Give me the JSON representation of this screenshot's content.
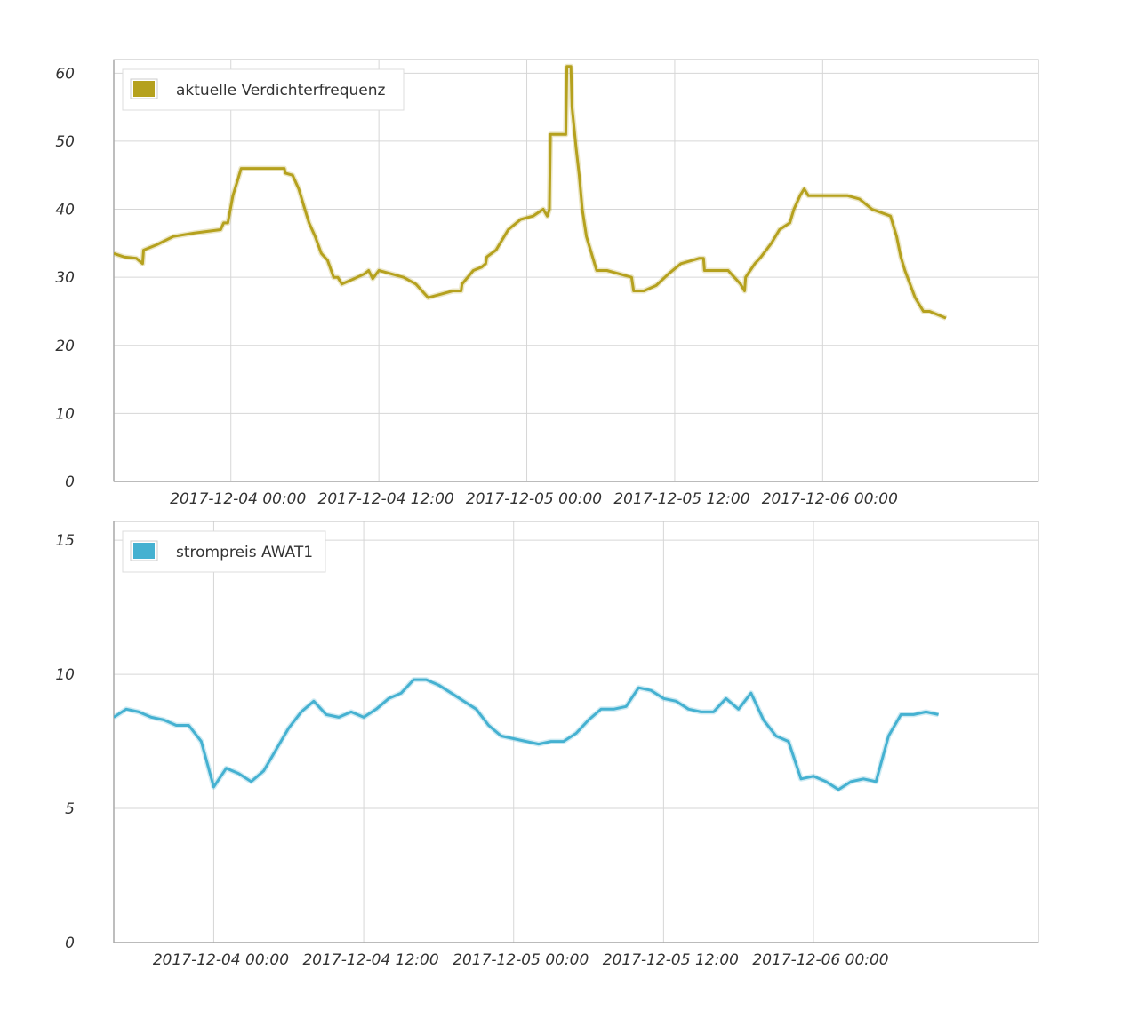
{
  "chart_data": [
    {
      "type": "line",
      "title": "",
      "xlabel": "",
      "ylabel": "",
      "ylim": [
        0,
        62
      ],
      "yticks": [
        0,
        10,
        20,
        30,
        40,
        50,
        60
      ],
      "xlim": [
        "2017-12-03 14:30",
        "2017-12-06 17:30"
      ],
      "xticks": [
        {
          "x": "2017-12-04 00:00",
          "label": "2017-12-04 00:00"
        },
        {
          "x": "2017-12-04 12:00",
          "label": "2017-12-04 12:00"
        },
        {
          "x": "2017-12-05 00:00",
          "label": "2017-12-05 00:00"
        },
        {
          "x": "2017-12-05 12:00",
          "label": "2017-12-05 12:00"
        },
        {
          "x": "2017-12-06 00:00",
          "label": "2017-12-06 00:00"
        }
      ],
      "grid": true,
      "legend": "top-left",
      "series": [
        {
          "name": "aktuelle Verdichterfrequenz",
          "color": "#b5a11e",
          "points": [
            [
              "2017-12-03 14:30",
              33.5
            ],
            [
              "2017-12-03 15:20",
              33.0
            ],
            [
              "2017-12-03 16:20",
              32.8
            ],
            [
              "2017-12-03 16:50",
              32.0
            ],
            [
              "2017-12-03 16:55",
              34.0
            ],
            [
              "2017-12-03 18:00",
              34.8
            ],
            [
              "2017-12-03 19:20",
              36.0
            ],
            [
              "2017-12-03 21:00",
              36.5
            ],
            [
              "2017-12-03 23:10",
              37.0
            ],
            [
              "2017-12-03 23:25",
              38.0
            ],
            [
              "2017-12-03 23:45",
              38.0
            ],
            [
              "2017-12-04 00:10",
              42.0
            ],
            [
              "2017-12-04 00:30",
              44.0
            ],
            [
              "2017-12-04 00:50",
              46.0
            ],
            [
              "2017-12-04 03:00",
              46.0
            ],
            [
              "2017-12-04 04:20",
              46.0
            ],
            [
              "2017-12-04 04:25",
              45.3
            ],
            [
              "2017-12-04 05:00",
              45.0
            ],
            [
              "2017-12-04 05:30",
              43.0
            ],
            [
              "2017-12-04 05:50",
              41.0
            ],
            [
              "2017-12-04 06:20",
              38.0
            ],
            [
              "2017-12-04 06:50",
              36.0
            ],
            [
              "2017-12-04 07:20",
              33.5
            ],
            [
              "2017-12-04 07:50",
              32.5
            ],
            [
              "2017-12-04 08:20",
              30.0
            ],
            [
              "2017-12-04 08:40",
              30.0
            ],
            [
              "2017-12-04 09:00",
              29.0
            ],
            [
              "2017-12-04 10:00",
              29.8
            ],
            [
              "2017-12-04 10:50",
              30.5
            ],
            [
              "2017-12-04 11:10",
              31.0
            ],
            [
              "2017-12-04 11:30",
              29.8
            ],
            [
              "2017-12-04 12:00",
              31.0
            ],
            [
              "2017-12-04 13:00",
              30.5
            ],
            [
              "2017-12-04 14:00",
              30.0
            ],
            [
              "2017-12-04 15:00",
              29.0
            ],
            [
              "2017-12-04 16:00",
              27.0
            ],
            [
              "2017-12-04 17:00",
              27.5
            ],
            [
              "2017-12-04 18:00",
              28.0
            ],
            [
              "2017-12-04 18:40",
              28.0
            ],
            [
              "2017-12-04 18:45",
              29.0
            ],
            [
              "2017-12-04 19:40",
              31.0
            ],
            [
              "2017-12-04 20:20",
              31.5
            ],
            [
              "2017-12-04 20:40",
              32.0
            ],
            [
              "2017-12-04 20:45",
              33.0
            ],
            [
              "2017-12-04 21:30",
              34.0
            ],
            [
              "2017-12-04 22:30",
              37.0
            ],
            [
              "2017-12-04 23:30",
              38.5
            ],
            [
              "2017-12-05 00:30",
              39.0
            ],
            [
              "2017-12-05 01:20",
              40.0
            ],
            [
              "2017-12-05 01:40",
              39.0
            ],
            [
              "2017-12-05 01:50",
              40.0
            ],
            [
              "2017-12-05 01:55",
              51.0
            ],
            [
              "2017-12-05 03:00",
              51.0
            ],
            [
              "2017-12-05 03:10",
              51.0
            ],
            [
              "2017-12-05 03:15",
              61.0
            ],
            [
              "2017-12-05 03:35",
              61.0
            ],
            [
              "2017-12-05 03:40",
              55.0
            ],
            [
              "2017-12-05 04:00",
              49.0
            ],
            [
              "2017-12-05 04:15",
              45.0
            ],
            [
              "2017-12-05 04:30",
              40.0
            ],
            [
              "2017-12-05 04:50",
              36.0
            ],
            [
              "2017-12-05 05:20",
              33.0
            ],
            [
              "2017-12-05 05:40",
              31.0
            ],
            [
              "2017-12-05 06:30",
              31.0
            ],
            [
              "2017-12-05 07:30",
              30.5
            ],
            [
              "2017-12-05 08:30",
              30.0
            ],
            [
              "2017-12-05 08:40",
              28.0
            ],
            [
              "2017-12-05 09:30",
              28.0
            ],
            [
              "2017-12-05 10:30",
              28.8
            ],
            [
              "2017-12-05 11:30",
              30.5
            ],
            [
              "2017-12-05 12:30",
              32.0
            ],
            [
              "2017-12-05 14:00",
              32.8
            ],
            [
              "2017-12-05 14:20",
              32.8
            ],
            [
              "2017-12-05 14:25",
              31.0
            ],
            [
              "2017-12-05 16:20",
              31.0
            ],
            [
              "2017-12-05 17:20",
              29.0
            ],
            [
              "2017-12-05 17:40",
              28.0
            ],
            [
              "2017-12-05 17:45",
              30.0
            ],
            [
              "2017-12-05 18:30",
              32.0
            ],
            [
              "2017-12-05 19:00",
              33.0
            ],
            [
              "2017-12-05 19:50",
              35.0
            ],
            [
              "2017-12-05 20:30",
              37.0
            ],
            [
              "2017-12-05 21:20",
              38.0
            ],
            [
              "2017-12-05 21:40",
              40.0
            ],
            [
              "2017-12-05 22:10",
              42.0
            ],
            [
              "2017-12-05 22:30",
              43.0
            ],
            [
              "2017-12-05 22:50",
              42.0
            ],
            [
              "2017-12-06 00:00",
              42.0
            ],
            [
              "2017-12-06 01:00",
              42.0
            ],
            [
              "2017-12-06 02:00",
              42.0
            ],
            [
              "2017-12-06 03:00",
              41.5
            ],
            [
              "2017-12-06 04:00",
              40.0
            ],
            [
              "2017-12-06 05:30",
              39.0
            ],
            [
              "2017-12-06 06:00",
              36.0
            ],
            [
              "2017-12-06 06:20",
              33.0
            ],
            [
              "2017-12-06 06:40",
              31.0
            ],
            [
              "2017-12-06 07:30",
              27.0
            ],
            [
              "2017-12-06 08:10",
              25.0
            ],
            [
              "2017-12-06 08:40",
              25.0
            ],
            [
              "2017-12-06 10:00",
              24.0
            ]
          ]
        }
      ]
    },
    {
      "type": "line",
      "title": "",
      "xlabel": "",
      "ylabel": "",
      "ylim": [
        0,
        15.7
      ],
      "yticks": [
        0,
        5,
        10,
        15
      ],
      "xlim": [
        "2017-12-03 16:00",
        "2017-12-06 18:00"
      ],
      "xticks": [
        {
          "x": "2017-12-04 00:00",
          "label": "2017-12-04 00:00"
        },
        {
          "x": "2017-12-04 12:00",
          "label": "2017-12-04 12:00"
        },
        {
          "x": "2017-12-05 00:00",
          "label": "2017-12-05 00:00"
        },
        {
          "x": "2017-12-05 12:00",
          "label": "2017-12-05 12:00"
        },
        {
          "x": "2017-12-06 00:00",
          "label": "2017-12-06 00:00"
        }
      ],
      "grid": true,
      "legend": "top-left",
      "series": [
        {
          "name": "strompreis AWAT1",
          "color": "#45b1d1",
          "points": [
            [
              "2017-12-03 16:00",
              8.4
            ],
            [
              "2017-12-03 17:00",
              8.7
            ],
            [
              "2017-12-03 18:00",
              8.6
            ],
            [
              "2017-12-03 19:00",
              8.4
            ],
            [
              "2017-12-03 20:00",
              8.3
            ],
            [
              "2017-12-03 21:00",
              8.1
            ],
            [
              "2017-12-03 22:00",
              8.1
            ],
            [
              "2017-12-03 23:00",
              7.5
            ],
            [
              "2017-12-04 00:00",
              5.8
            ],
            [
              "2017-12-04 01:00",
              6.5
            ],
            [
              "2017-12-04 02:00",
              6.3
            ],
            [
              "2017-12-04 03:00",
              6.0
            ],
            [
              "2017-12-04 04:00",
              6.4
            ],
            [
              "2017-12-04 05:00",
              7.2
            ],
            [
              "2017-12-04 06:00",
              8.0
            ],
            [
              "2017-12-04 07:00",
              8.6
            ],
            [
              "2017-12-04 08:00",
              9.0
            ],
            [
              "2017-12-04 09:00",
              8.5
            ],
            [
              "2017-12-04 10:00",
              8.4
            ],
            [
              "2017-12-04 11:00",
              8.6
            ],
            [
              "2017-12-04 12:00",
              8.4
            ],
            [
              "2017-12-04 13:00",
              8.7
            ],
            [
              "2017-12-04 14:00",
              9.1
            ],
            [
              "2017-12-04 15:00",
              9.3
            ],
            [
              "2017-12-04 16:00",
              9.8
            ],
            [
              "2017-12-04 17:00",
              9.8
            ],
            [
              "2017-12-04 18:00",
              9.6
            ],
            [
              "2017-12-04 19:00",
              9.3
            ],
            [
              "2017-12-04 20:00",
              9.0
            ],
            [
              "2017-12-04 21:00",
              8.7
            ],
            [
              "2017-12-04 22:00",
              8.1
            ],
            [
              "2017-12-04 23:00",
              7.7
            ],
            [
              "2017-12-05 00:00",
              7.6
            ],
            [
              "2017-12-05 01:00",
              7.5
            ],
            [
              "2017-12-05 02:00",
              7.4
            ],
            [
              "2017-12-05 03:00",
              7.5
            ],
            [
              "2017-12-05 04:00",
              7.5
            ],
            [
              "2017-12-05 05:00",
              7.8
            ],
            [
              "2017-12-05 06:00",
              8.3
            ],
            [
              "2017-12-05 07:00",
              8.7
            ],
            [
              "2017-12-05 08:00",
              8.7
            ],
            [
              "2017-12-05 09:00",
              8.8
            ],
            [
              "2017-12-05 10:00",
              9.5
            ],
            [
              "2017-12-05 11:00",
              9.4
            ],
            [
              "2017-12-05 12:00",
              9.1
            ],
            [
              "2017-12-05 13:00",
              9.0
            ],
            [
              "2017-12-05 14:00",
              8.7
            ],
            [
              "2017-12-05 15:00",
              8.6
            ],
            [
              "2017-12-05 16:00",
              8.6
            ],
            [
              "2017-12-05 17:00",
              9.1
            ],
            [
              "2017-12-05 18:00",
              8.7
            ],
            [
              "2017-12-05 19:00",
              9.3
            ],
            [
              "2017-12-05 20:00",
              8.3
            ],
            [
              "2017-12-05 21:00",
              7.7
            ],
            [
              "2017-12-05 22:00",
              7.5
            ],
            [
              "2017-12-05 23:00",
              6.1
            ],
            [
              "2017-12-06 00:00",
              6.2
            ],
            [
              "2017-12-06 01:00",
              6.0
            ],
            [
              "2017-12-06 02:00",
              5.7
            ],
            [
              "2017-12-06 03:00",
              6.0
            ],
            [
              "2017-12-06 04:00",
              6.1
            ],
            [
              "2017-12-06 05:00",
              6.0
            ],
            [
              "2017-12-06 06:00",
              7.7
            ],
            [
              "2017-12-06 07:00",
              8.5
            ],
            [
              "2017-12-06 08:00",
              8.5
            ],
            [
              "2017-12-06 09:00",
              8.6
            ],
            [
              "2017-12-06 10:00",
              8.5
            ]
          ]
        }
      ]
    }
  ]
}
